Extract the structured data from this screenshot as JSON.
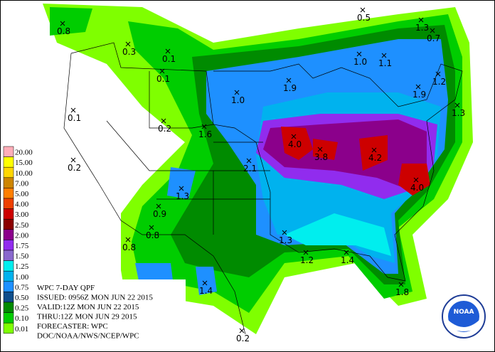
{
  "legend": {
    "items": [
      {
        "label": "20.00",
        "color": "#ffaeb9"
      },
      {
        "label": "15.00",
        "color": "#ffff00"
      },
      {
        "label": "10.00",
        "color": "#ffd700"
      },
      {
        "label": "7.00",
        "color": "#cd8500"
      },
      {
        "label": "5.00",
        "color": "#ff7f00"
      },
      {
        "label": "4.00",
        "color": "#ee4000"
      },
      {
        "label": "3.00",
        "color": "#cd0000"
      },
      {
        "label": "2.50",
        "color": "#8b0000"
      },
      {
        "label": "2.00",
        "color": "#8b008b"
      },
      {
        "label": "1.75",
        "color": "#912cee"
      },
      {
        "label": "1.50",
        "color": "#8968cd"
      },
      {
        "label": "1.25",
        "color": "#00eeee"
      },
      {
        "label": "1.00",
        "color": "#00b2ee"
      },
      {
        "label": "0.75",
        "color": "#1e90ff"
      },
      {
        "label": "0.50",
        "color": "#104e8b"
      },
      {
        "label": "0.25",
        "color": "#008b00"
      },
      {
        "label": "0.10",
        "color": "#00cd00"
      },
      {
        "label": "0.01",
        "color": "#7fff00"
      }
    ]
  },
  "info": {
    "lines": [
      "WPC 7-DAY QPF",
      "ISSUED: 0956Z MON JUN 22 2015",
      "VALID:12Z MON JUN 22 2015",
      "THRU:12Z MON JUN 29 2015",
      "FORECASTER: WPC",
      "DOC/NOAA/NWS/NCEP/WPC"
    ]
  },
  "logo": {
    "text": "NOAA"
  },
  "labels": [
    "0.8",
    "0.5",
    "1.3",
    "0.7",
    "0.3",
    "0.1",
    "1.0",
    "1.1",
    "0.1",
    "1.2",
    "1.9",
    "1.9",
    "1.0",
    "1.3",
    "0.1",
    "0.2",
    "1.6",
    "4.0",
    "3.8",
    "4.2",
    "2.1",
    "0.2",
    "4.0",
    "1.3",
    "0.9",
    "0.8",
    "0.8",
    "1.3",
    "1.2",
    "1.4",
    "1.4",
    "1.8",
    "0.2"
  ]
}
